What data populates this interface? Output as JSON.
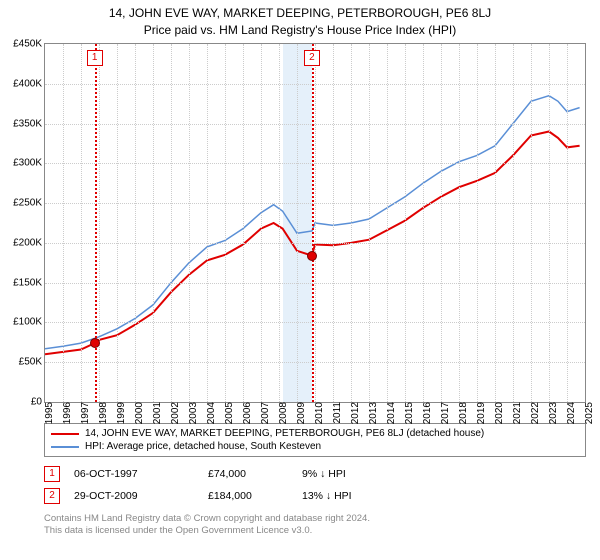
{
  "title_line1": "14, JOHN EVE WAY, MARKET DEEPING, PETERBOROUGH, PE6 8LJ",
  "title_line2": "Price paid vs. HM Land Registry's House Price Index (HPI)",
  "chart": {
    "type": "line",
    "background_color": "#ffffff",
    "grid_color": "#cccccc",
    "border_color": "#888888",
    "x_min": 1995,
    "x_max": 2025,
    "x_tick_step": 1,
    "x_tick_labels": [
      "1995",
      "1996",
      "1997",
      "1998",
      "1999",
      "2000",
      "2001",
      "2002",
      "2003",
      "2004",
      "2005",
      "2006",
      "2007",
      "2008",
      "2009",
      "2010",
      "2011",
      "2012",
      "2013",
      "2014",
      "2015",
      "2016",
      "2017",
      "2018",
      "2019",
      "2020",
      "2021",
      "2022",
      "2023",
      "2024",
      "2025"
    ],
    "y_min": 0,
    "y_max": 450000,
    "y_tick_step": 50000,
    "y_tick_labels": [
      "£0",
      "£50K",
      "£100K",
      "£150K",
      "£200K",
      "£250K",
      "£300K",
      "£350K",
      "£400K",
      "£450K"
    ],
    "label_fontsize": 10,
    "shaded_region": {
      "x_start": 2008.2,
      "x_end": 2009.83,
      "color": "#d0e4f5",
      "opacity": 0.55
    },
    "series": [
      {
        "name": "property",
        "color": "#e00000",
        "width": 2,
        "points": [
          [
            1995,
            60000
          ],
          [
            1996,
            63000
          ],
          [
            1997,
            66000
          ],
          [
            1997.76,
            74000
          ],
          [
            1998,
            78000
          ],
          [
            1999,
            84000
          ],
          [
            2000,
            97000
          ],
          [
            2001,
            112000
          ],
          [
            2002,
            138000
          ],
          [
            2003,
            160000
          ],
          [
            2004,
            178000
          ],
          [
            2005,
            185000
          ],
          [
            2006,
            198000
          ],
          [
            2007,
            218000
          ],
          [
            2007.7,
            225000
          ],
          [
            2008.2,
            218000
          ],
          [
            2009,
            190000
          ],
          [
            2009.83,
            184000
          ],
          [
            2010,
            198000
          ],
          [
            2011,
            197000
          ],
          [
            2012,
            200000
          ],
          [
            2013,
            204000
          ],
          [
            2014,
            216000
          ],
          [
            2015,
            228000
          ],
          [
            2016,
            244000
          ],
          [
            2017,
            258000
          ],
          [
            2018,
            270000
          ],
          [
            2019,
            278000
          ],
          [
            2020,
            288000
          ],
          [
            2021,
            310000
          ],
          [
            2022,
            335000
          ],
          [
            2023,
            340000
          ],
          [
            2023.5,
            332000
          ],
          [
            2024,
            320000
          ],
          [
            2024.7,
            322000
          ]
        ]
      },
      {
        "name": "hpi",
        "color": "#5a8fd6",
        "width": 1.5,
        "points": [
          [
            1995,
            67000
          ],
          [
            1996,
            70000
          ],
          [
            1997,
            74000
          ],
          [
            1998,
            82000
          ],
          [
            1999,
            92000
          ],
          [
            2000,
            105000
          ],
          [
            2001,
            122000
          ],
          [
            2002,
            150000
          ],
          [
            2003,
            175000
          ],
          [
            2004,
            195000
          ],
          [
            2005,
            203000
          ],
          [
            2006,
            218000
          ],
          [
            2007,
            238000
          ],
          [
            2007.7,
            248000
          ],
          [
            2008.2,
            240000
          ],
          [
            2009,
            212000
          ],
          [
            2009.83,
            215000
          ],
          [
            2010,
            225000
          ],
          [
            2011,
            222000
          ],
          [
            2012,
            225000
          ],
          [
            2013,
            230000
          ],
          [
            2014,
            244000
          ],
          [
            2015,
            258000
          ],
          [
            2016,
            275000
          ],
          [
            2017,
            290000
          ],
          [
            2018,
            302000
          ],
          [
            2019,
            310000
          ],
          [
            2020,
            322000
          ],
          [
            2021,
            350000
          ],
          [
            2022,
            378000
          ],
          [
            2023,
            385000
          ],
          [
            2023.5,
            378000
          ],
          [
            2024,
            365000
          ],
          [
            2024.7,
            370000
          ]
        ]
      }
    ],
    "sale_markers": [
      {
        "n": "1",
        "x": 1997.76,
        "y": 74000
      },
      {
        "n": "2",
        "x": 2009.83,
        "y": 184000
      }
    ]
  },
  "legend": {
    "items": [
      {
        "color": "#e00000",
        "label": "14, JOHN EVE WAY, MARKET DEEPING, PETERBOROUGH, PE6 8LJ (detached house)"
      },
      {
        "color": "#5a8fd6",
        "label": "HPI: Average price, detached house, South Kesteven"
      }
    ]
  },
  "sales": [
    {
      "n": "1",
      "date": "06-OCT-1997",
      "price": "£74,000",
      "diff": "9% ↓ HPI"
    },
    {
      "n": "2",
      "date": "29-OCT-2009",
      "price": "£184,000",
      "diff": "13% ↓ HPI"
    }
  ],
  "attribution_line1": "Contains HM Land Registry data © Crown copyright and database right 2024.",
  "attribution_line2": "This data is licensed under the Open Government Licence v3.0."
}
